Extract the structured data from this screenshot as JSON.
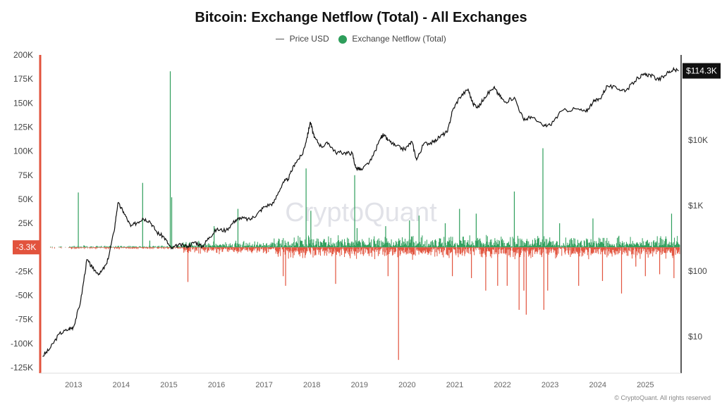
{
  "title": "Bitcoin: Exchange Netflow (Total) - All Exchanges",
  "legend": {
    "price_label": "Price USD",
    "netflow_label": "Exchange Netflow (Total)"
  },
  "watermark": "CryptoQuant",
  "copyright": "© CryptoQuant. All rights reserved",
  "current_value_badge": "-3.3K",
  "current_price_badge": "$114.3K",
  "colors": {
    "positive": "#2e9e5b",
    "negative": "#e2533d",
    "price": "#111111",
    "left_axis": "#e2533d",
    "badge_price_bg": "#111111"
  },
  "chart_data": {
    "type": "bar",
    "title": "Bitcoin: Exchange Netflow (Total) - All Exchanges",
    "series": [
      {
        "name": "Exchange Netflow (Total)",
        "axis": "left"
      },
      {
        "name": "Price USD",
        "axis": "right",
        "scale": "log"
      }
    ],
    "left_axis": {
      "ylim": [
        -125000,
        200000
      ],
      "ticks": [
        "200K",
        "175K",
        "150K",
        "125K",
        "100K",
        "75K",
        "50K",
        "25K",
        "-25K",
        "-50K",
        "-75K",
        "-100K",
        "-125K"
      ],
      "tick_values": [
        200000,
        175000,
        150000,
        125000,
        100000,
        75000,
        50000,
        25000,
        -25000,
        -50000,
        -75000,
        -100000,
        -125000
      ]
    },
    "right_axis": {
      "scale": "log",
      "ticks": [
        "$10K",
        "$1K",
        "$100",
        "$10"
      ],
      "tick_values": [
        10000,
        1000,
        100,
        10
      ]
    },
    "x_ticks": [
      "2013",
      "2014",
      "2015",
      "2016",
      "2017",
      "2018",
      "2019",
      "2020",
      "2021",
      "2022",
      "2023",
      "2024",
      "2025"
    ],
    "xlim": [
      2012.3,
      2025.75
    ],
    "price": [
      [
        2012.35,
        5.0
      ],
      [
        2012.5,
        6.5
      ],
      [
        2012.7,
        11
      ],
      [
        2012.9,
        13
      ],
      [
        2013.0,
        14
      ],
      [
        2013.15,
        35
      ],
      [
        2013.28,
        150
      ],
      [
        2013.4,
        110
      ],
      [
        2013.55,
        90
      ],
      [
        2013.7,
        130
      ],
      [
        2013.85,
        400
      ],
      [
        2013.93,
        1100
      ],
      [
        2014.05,
        800
      ],
      [
        2014.2,
        480
      ],
      [
        2014.35,
        560
      ],
      [
        2014.45,
        640
      ],
      [
        2014.6,
        580
      ],
      [
        2014.75,
        390
      ],
      [
        2014.9,
        330
      ],
      [
        2015.05,
        220
      ],
      [
        2015.2,
        250
      ],
      [
        2015.4,
        240
      ],
      [
        2015.55,
        280
      ],
      [
        2015.7,
        235
      ],
      [
        2015.85,
        330
      ],
      [
        2016.0,
        430
      ],
      [
        2016.2,
        420
      ],
      [
        2016.4,
        600
      ],
      [
        2016.5,
        650
      ],
      [
        2016.7,
        610
      ],
      [
        2016.85,
        740
      ],
      [
        2017.0,
        960
      ],
      [
        2017.2,
        1100
      ],
      [
        2017.4,
        2300
      ],
      [
        2017.5,
        2500
      ],
      [
        2017.65,
        4500
      ],
      [
        2017.8,
        6000
      ],
      [
        2017.9,
        11000
      ],
      [
        2017.97,
        19000
      ],
      [
        2018.05,
        11000
      ],
      [
        2018.2,
        8000
      ],
      [
        2018.35,
        9000
      ],
      [
        2018.5,
        6500
      ],
      [
        2018.7,
        6400
      ],
      [
        2018.85,
        6300
      ],
      [
        2018.92,
        3800
      ],
      [
        2019.05,
        3500
      ],
      [
        2019.25,
        5000
      ],
      [
        2019.45,
        11000
      ],
      [
        2019.5,
        12000
      ],
      [
        2019.6,
        10000
      ],
      [
        2019.75,
        8200
      ],
      [
        2019.95,
        7200
      ],
      [
        2020.1,
        9500
      ],
      [
        2020.2,
        5000
      ],
      [
        2020.35,
        8800
      ],
      [
        2020.55,
        9300
      ],
      [
        2020.7,
        11500
      ],
      [
        2020.85,
        13500
      ],
      [
        2020.95,
        28000
      ],
      [
        2021.1,
        45000
      ],
      [
        2021.28,
        60000
      ],
      [
        2021.38,
        36000
      ],
      [
        2021.5,
        32000
      ],
      [
        2021.62,
        45000
      ],
      [
        2021.82,
        64000
      ],
      [
        2021.92,
        50000
      ],
      [
        2022.05,
        38000
      ],
      [
        2022.25,
        45000
      ],
      [
        2022.45,
        20000
      ],
      [
        2022.6,
        23000
      ],
      [
        2022.85,
        16500
      ],
      [
        2023.0,
        17000
      ],
      [
        2023.25,
        28000
      ],
      [
        2023.55,
        30000
      ],
      [
        2023.75,
        27000
      ],
      [
        2023.9,
        38000
      ],
      [
        2024.05,
        43000
      ],
      [
        2024.2,
        68000
      ],
      [
        2024.45,
        60000
      ],
      [
        2024.6,
        58000
      ],
      [
        2024.85,
        90000
      ],
      [
        2024.95,
        98000
      ],
      [
        2025.1,
        100000
      ],
      [
        2025.28,
        82000
      ],
      [
        2025.45,
        105000
      ],
      [
        2025.58,
        118000
      ],
      [
        2025.7,
        114300
      ]
    ],
    "netflow_spikes": [
      [
        2013.1,
        57000
      ],
      [
        2014.45,
        67000
      ],
      [
        2014.6,
        7000
      ],
      [
        2015.03,
        183000
      ],
      [
        2015.06,
        52000
      ],
      [
        2015.4,
        -36000
      ],
      [
        2015.95,
        22000
      ],
      [
        2016.45,
        40000
      ],
      [
        2017.4,
        -30000
      ],
      [
        2017.45,
        -40000
      ],
      [
        2017.88,
        82000
      ],
      [
        2017.98,
        38000
      ],
      [
        2018.5,
        -38000
      ],
      [
        2018.9,
        75000
      ],
      [
        2018.95,
        20000
      ],
      [
        2019.55,
        22000
      ],
      [
        2019.6,
        -30000
      ],
      [
        2019.82,
        -117000
      ],
      [
        2020.05,
        28000
      ],
      [
        2020.25,
        33000
      ],
      [
        2020.8,
        25000
      ],
      [
        2020.95,
        -30000
      ],
      [
        2021.1,
        40000
      ],
      [
        2021.35,
        -32000
      ],
      [
        2021.45,
        35000
      ],
      [
        2021.65,
        -45000
      ],
      [
        2021.9,
        -40000
      ],
      [
        2022.1,
        -40000
      ],
      [
        2022.25,
        58000
      ],
      [
        2022.35,
        -65000
      ],
      [
        2022.45,
        -45000
      ],
      [
        2022.5,
        -70000
      ],
      [
        2022.85,
        103000
      ],
      [
        2022.87,
        -65000
      ],
      [
        2022.95,
        -45000
      ],
      [
        2023.2,
        25000
      ],
      [
        2023.6,
        -40000
      ],
      [
        2023.9,
        30000
      ],
      [
        2024.1,
        -35000
      ],
      [
        2024.5,
        -48000
      ],
      [
        2024.8,
        -20000
      ],
      [
        2025.0,
        -30000
      ],
      [
        2025.3,
        -28000
      ],
      [
        2025.55,
        35000
      ],
      [
        2025.6,
        -32000
      ],
      [
        2025.7,
        -3300
      ]
    ],
    "last_netflow": -3300,
    "last_price": 114300
  }
}
